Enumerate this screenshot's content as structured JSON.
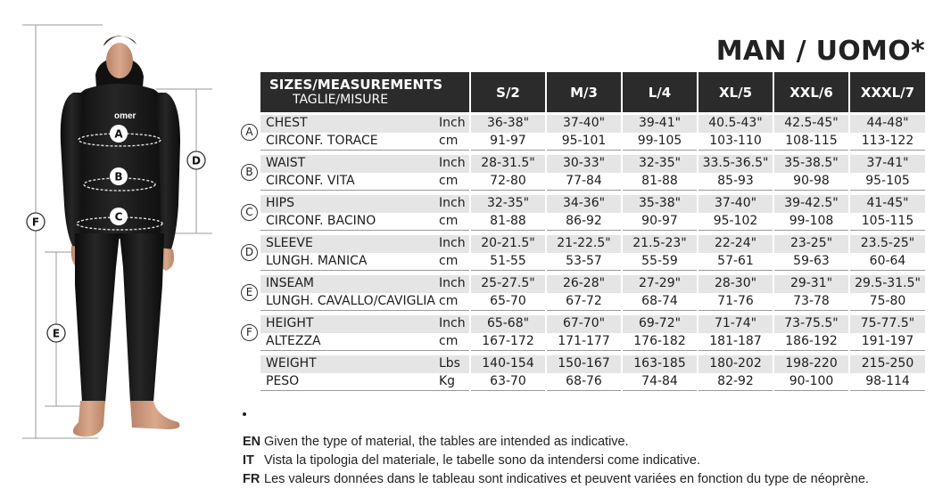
{
  "title": "MAN / UOMO*",
  "figure": {
    "brand": "omer",
    "markers": [
      "A",
      "B",
      "C",
      "D",
      "E",
      "F"
    ]
  },
  "table": {
    "header": {
      "label_en": "SIZES/MEASUREMENTS",
      "label_it": "TAGLIE/MISURE",
      "sizes": [
        "S/2",
        "M/3",
        "L/4",
        "XL/5",
        "XXL/6",
        "XXXL/7"
      ]
    },
    "rows": [
      {
        "badge": "A",
        "name_en": "CHEST",
        "unit_1": "Inch",
        "values_1": [
          "36-38\"",
          "37-40\"",
          "39-41\"",
          "40.5-43\"",
          "42.5-45\"",
          "44-48\""
        ],
        "name_it": "CIRCONF. TORACE",
        "unit_2": "cm",
        "values_2": [
          "91-97",
          "95-101",
          "99-105",
          "103-110",
          "108-115",
          "113-122"
        ]
      },
      {
        "badge": "B",
        "name_en": "WAIST",
        "unit_1": "Inch",
        "values_1": [
          "28-31.5\"",
          "30-33\"",
          "32-35\"",
          "33.5-36.5\"",
          "35-38.5\"",
          "37-41\""
        ],
        "name_it": "CIRCONF. VITA",
        "unit_2": "cm",
        "values_2": [
          "72-80",
          "77-84",
          "81-88",
          "85-93",
          "90-98",
          "95-105"
        ]
      },
      {
        "badge": "C",
        "name_en": "HIPS",
        "unit_1": "Inch",
        "values_1": [
          "32-35\"",
          "34-36\"",
          "35-38\"",
          "37-40\"",
          "39-42.5\"",
          "41-45\""
        ],
        "name_it": "CIRCONF. BACINO",
        "unit_2": "cm",
        "values_2": [
          "81-88",
          "86-92",
          "90-97",
          "95-102",
          "99-108",
          "105-115"
        ]
      },
      {
        "badge": "D",
        "name_en": "SLEEVE",
        "unit_1": "Inch",
        "values_1": [
          "20-21.5\"",
          "21-22.5\"",
          "21.5-23\"",
          "22-24\"",
          "23-25\"",
          "23.5-25\""
        ],
        "name_it": "LUNGH. MANICA",
        "unit_2": "cm",
        "values_2": [
          "51-55",
          "53-57",
          "55-59",
          "57-61",
          "59-63",
          "60-64"
        ]
      },
      {
        "badge": "E",
        "name_en": "INSEAM",
        "unit_1": "Inch",
        "values_1": [
          "25-27.5\"",
          "26-28\"",
          "27-29\"",
          "28-30\"",
          "29-31\"",
          "29.5-31.5\""
        ],
        "name_it": "LUNGH. CAVALLO/CAVIGLIA",
        "unit_2": "cm",
        "values_2": [
          "65-70",
          "67-72",
          "68-74",
          "71-76",
          "73-78",
          "75-80"
        ]
      },
      {
        "badge": "F",
        "name_en": "HEIGHT",
        "unit_1": "Inch",
        "values_1": [
          "65-68\"",
          "67-70\"",
          "69-72\"",
          "71-74\"",
          "73-75.5\"",
          "75-77.5\""
        ],
        "name_it": "ALTEZZA",
        "unit_2": "cm",
        "values_2": [
          "167-172",
          "171-177",
          "176-182",
          "181-187",
          "186-192",
          "191-197"
        ]
      },
      {
        "badge": "",
        "name_en": "WEIGHT",
        "unit_1": "Lbs",
        "values_1": [
          "140-154",
          "150-167",
          "163-185",
          "180-202",
          "198-220",
          "215-250"
        ],
        "name_it": "PESO",
        "unit_2": "Kg",
        "values_2": [
          "63-70",
          "68-76",
          "74-84",
          "82-92",
          "90-100",
          "98-114"
        ]
      }
    ]
  },
  "notes": [
    {
      "lang": "EN",
      "text": "Given the type of material, the tables are intended as indicative."
    },
    {
      "lang": "IT",
      "text": "Vista la tipologia del materiale, le tabelle sono da intendersi come indicative."
    },
    {
      "lang": "FR",
      "text": "Les valeurs données dans le tableau sont indicatives et peuvent variées en fonction du type de néoprène."
    }
  ],
  "colors": {
    "header_bg": "#2b2b2b",
    "row_shade": "#e5e5e5",
    "suit": "#151515",
    "skin": "#c9977a"
  }
}
